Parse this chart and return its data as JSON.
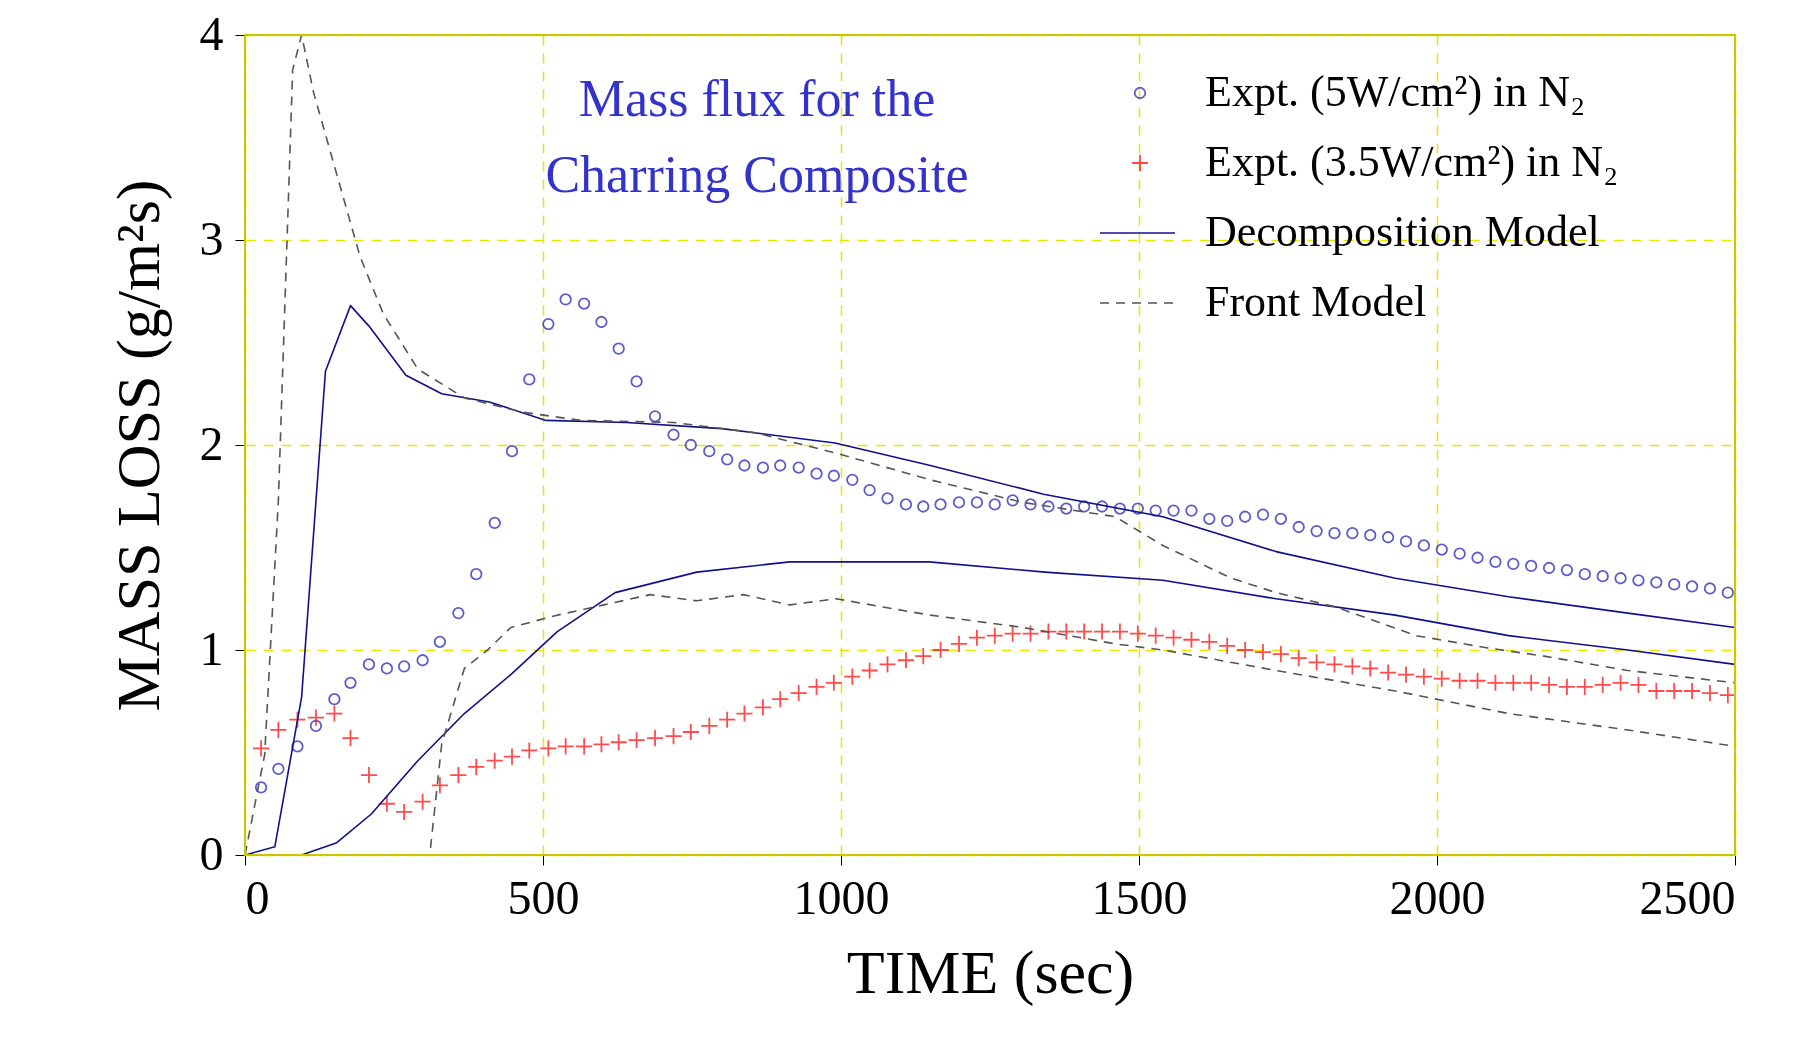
{
  "chart_data": {
    "type": "line",
    "xlabel": "TIME (sec)",
    "ylabel": "MASS LOSS (g/m²s)",
    "annotations": [
      "Mass flux for the\nCharring Composite"
    ],
    "xlim": [
      0,
      2500
    ],
    "ylim": [
      0,
      4
    ],
    "xticks": [
      0,
      500,
      1000,
      1500,
      2000,
      2500
    ],
    "yticks": [
      0,
      1,
      2,
      3,
      4
    ],
    "grid": true,
    "legend": "top right",
    "series": [
      {
        "name": "Expt. (5W/cm²) in N₂",
        "type": "scatter",
        "marker": "circle",
        "color": "#1a1ab4",
        "x": [
          27,
          56,
          88,
          119,
          150,
          177,
          208,
          238,
          267,
          298,
          327,
          358,
          388,
          419,
          448,
          477,
          509,
          538,
          569,
          598,
          627,
          657,
          688,
          719,
          748,
          779,
          809,
          838,
          869,
          898,
          929,
          959,
          988,
          1019,
          1048,
          1078,
          1109,
          1138,
          1167,
          1198,
          1228,
          1258,
          1288,
          1318,
          1348,
          1378,
          1408,
          1438,
          1468,
          1498,
          1528,
          1558,
          1588,
          1618,
          1648,
          1678,
          1708,
          1738,
          1768,
          1798,
          1828,
          1858,
          1888,
          1918,
          1948,
          1978,
          2008,
          2038,
          2068,
          2098,
          2128,
          2158,
          2188,
          2218,
          2248,
          2278,
          2308,
          2338,
          2368,
          2398,
          2428,
          2458,
          2488
        ],
        "values": [
          0.33,
          0.42,
          0.53,
          0.63,
          0.76,
          0.84,
          0.93,
          0.91,
          0.92,
          0.95,
          1.04,
          1.18,
          1.37,
          1.62,
          1.97,
          2.32,
          2.59,
          2.71,
          2.69,
          2.6,
          2.47,
          2.31,
          2.14,
          2.05,
          2.0,
          1.97,
          1.93,
          1.9,
          1.89,
          1.9,
          1.89,
          1.86,
          1.85,
          1.83,
          1.78,
          1.74,
          1.71,
          1.7,
          1.71,
          1.72,
          1.72,
          1.71,
          1.73,
          1.71,
          1.7,
          1.69,
          1.7,
          1.7,
          1.69,
          1.69,
          1.68,
          1.68,
          1.68,
          1.64,
          1.63,
          1.65,
          1.66,
          1.64,
          1.6,
          1.58,
          1.57,
          1.57,
          1.56,
          1.55,
          1.53,
          1.51,
          1.49,
          1.47,
          1.45,
          1.43,
          1.42,
          1.41,
          1.4,
          1.39,
          1.37,
          1.36,
          1.35,
          1.34,
          1.33,
          1.32,
          1.31,
          1.3,
          1.28
        ]
      },
      {
        "name": "Expt. (3.5W/cm²) in N₂",
        "type": "scatter",
        "marker": "cross",
        "color": "#ff0000",
        "x": [
          27,
          56,
          88,
          119,
          150,
          177,
          208,
          238,
          267,
          298,
          327,
          358,
          388,
          419,
          448,
          477,
          509,
          538,
          569,
          598,
          627,
          657,
          688,
          719,
          748,
          779,
          809,
          838,
          869,
          898,
          929,
          959,
          988,
          1019,
          1048,
          1078,
          1109,
          1138,
          1167,
          1198,
          1228,
          1258,
          1288,
          1318,
          1348,
          1378,
          1408,
          1438,
          1468,
          1498,
          1528,
          1558,
          1588,
          1618,
          1648,
          1678,
          1708,
          1738,
          1768,
          1798,
          1828,
          1858,
          1888,
          1918,
          1948,
          1978,
          2008,
          2038,
          2068,
          2098,
          2128,
          2158,
          2188,
          2218,
          2248,
          2278,
          2308,
          2338,
          2368,
          2398,
          2428,
          2458,
          2488
        ],
        "values": [
          0.52,
          0.61,
          0.66,
          0.67,
          0.69,
          0.57,
          0.39,
          0.25,
          0.21,
          0.26,
          0.34,
          0.39,
          0.43,
          0.46,
          0.48,
          0.51,
          0.52,
          0.53,
          0.53,
          0.54,
          0.55,
          0.56,
          0.57,
          0.58,
          0.6,
          0.63,
          0.66,
          0.69,
          0.72,
          0.76,
          0.79,
          0.82,
          0.84,
          0.87,
          0.9,
          0.93,
          0.95,
          0.97,
          1.0,
          1.03,
          1.06,
          1.07,
          1.08,
          1.08,
          1.09,
          1.09,
          1.09,
          1.09,
          1.09,
          1.08,
          1.07,
          1.06,
          1.05,
          1.04,
          1.02,
          1.0,
          0.99,
          0.98,
          0.96,
          0.94,
          0.93,
          0.92,
          0.91,
          0.89,
          0.88,
          0.87,
          0.86,
          0.85,
          0.85,
          0.84,
          0.84,
          0.84,
          0.83,
          0.82,
          0.82,
          0.83,
          0.84,
          0.83,
          0.8,
          0.8,
          0.8,
          0.79,
          0.78
        ]
      },
      {
        "name": "Decomposition Model",
        "line_style": "solid",
        "color": "#10108c",
        "x": [
          0,
          50,
          95,
          135,
          177,
          208,
          270,
          330,
          410,
          505,
          640,
          800,
          990,
          1150,
          1340,
          1540,
          1730,
          1930,
          2120,
          2320,
          2500
        ],
        "values": [
          0,
          0.04,
          0.77,
          2.36,
          2.68,
          2.58,
          2.34,
          2.25,
          2.21,
          2.12,
          2.11,
          2.08,
          2.01,
          1.9,
          1.76,
          1.65,
          1.48,
          1.35,
          1.26,
          1.18,
          1.11
        ]
      },
      {
        "line_style": "solid",
        "color": "#10108c",
        "x": [
          0,
          95,
          154,
          212,
          290,
          368,
          446,
          524,
          621,
          758,
          914,
          1148,
          1342,
          1540,
          1730,
          1930,
          2120,
          2320,
          2500
        ],
        "values": [
          0,
          0,
          0.06,
          0.2,
          0.46,
          0.69,
          0.88,
          1.09,
          1.28,
          1.38,
          1.43,
          1.43,
          1.38,
          1.34,
          1.25,
          1.17,
          1.07,
          1.0,
          0.93
        ]
      },
      {
        "name": "Front Model",
        "line_style": "dashed",
        "color": "#555555",
        "x": [
          0,
          33,
          56,
          80,
          95,
          115,
          154,
          193,
          232,
          290,
          368,
          466,
          563,
          719,
          856,
          992,
          1150,
          1305,
          1460,
          1540,
          1655,
          1730,
          1830,
          1965,
          2085,
          2180,
          2320,
          2500
        ],
        "values": [
          0,
          0.49,
          1.73,
          3.83,
          4.0,
          3.72,
          3.32,
          2.92,
          2.64,
          2.37,
          2.23,
          2.16,
          2.12,
          2.11,
          2.06,
          1.96,
          1.83,
          1.72,
          1.65,
          1.51,
          1.35,
          1.28,
          1.21,
          1.07,
          1.01,
          0.97,
          0.9,
          0.84
        ]
      },
      {
        "line_style": "dashed",
        "color": "#555555",
        "x": [
          0,
          310,
          330,
          368,
          407,
          446,
          524,
          602,
          680,
          758,
          836,
          914,
          992,
          1070,
          1150,
          1305,
          1460,
          1540,
          1730,
          1930,
          2120,
          2320,
          2500
        ],
        "values": [
          0,
          0,
          0.54,
          0.91,
          1.0,
          1.11,
          1.17,
          1.22,
          1.27,
          1.24,
          1.27,
          1.22,
          1.25,
          1.21,
          1.17,
          1.11,
          1.03,
          1.0,
          0.9,
          0.8,
          0.69,
          0.61,
          0.53
        ]
      }
    ]
  }
}
